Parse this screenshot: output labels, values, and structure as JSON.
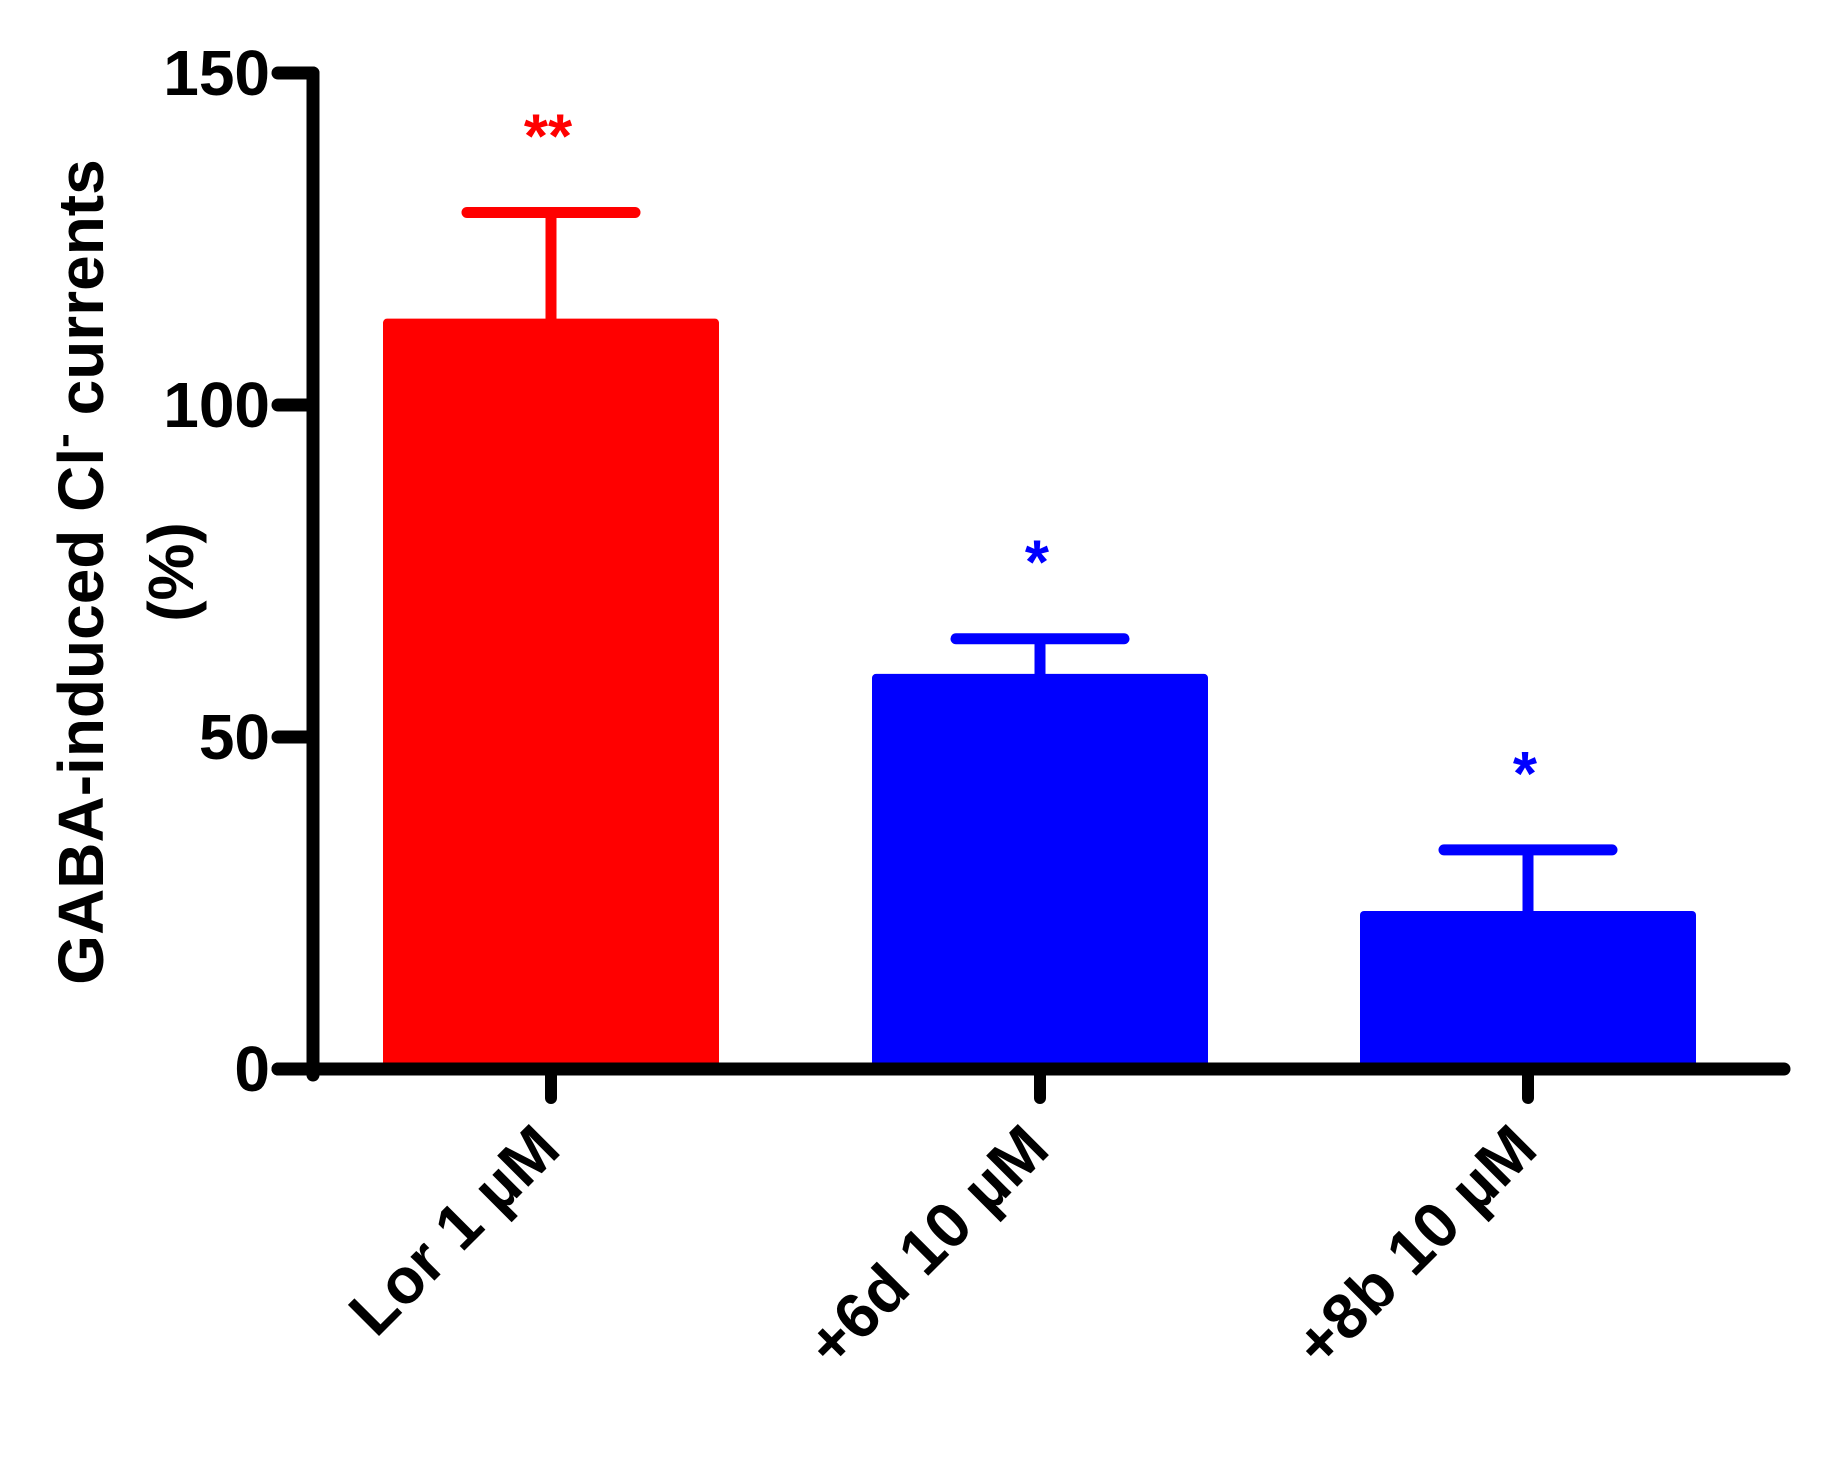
{
  "chart_data": {
    "type": "bar",
    "categories": [
      "Lor 1  µM",
      "+6d  10 µM",
      "+8b  10 µM"
    ],
    "values": [
      113,
      59.5,
      23.8
    ],
    "error_upper": [
      129,
      64.8,
      33
    ],
    "significance": [
      "**",
      "*",
      "*"
    ],
    "bar_colors": [
      "#ff0000",
      "#0000ff",
      "#0000ff"
    ],
    "ylabel_line1": "GABA-induced Cl",
    "ylabel_superscript": "-",
    "ylabel_line1_suffix": " currents",
    "ylabel_line2": "(%)",
    "xlabel": "",
    "title": "",
    "ylim": [
      0,
      150
    ],
    "yticks": [
      "0",
      "50",
      "100",
      "150"
    ],
    "ytick_values": [
      0,
      50,
      100,
      150
    ],
    "grid": false,
    "legend": "none"
  }
}
